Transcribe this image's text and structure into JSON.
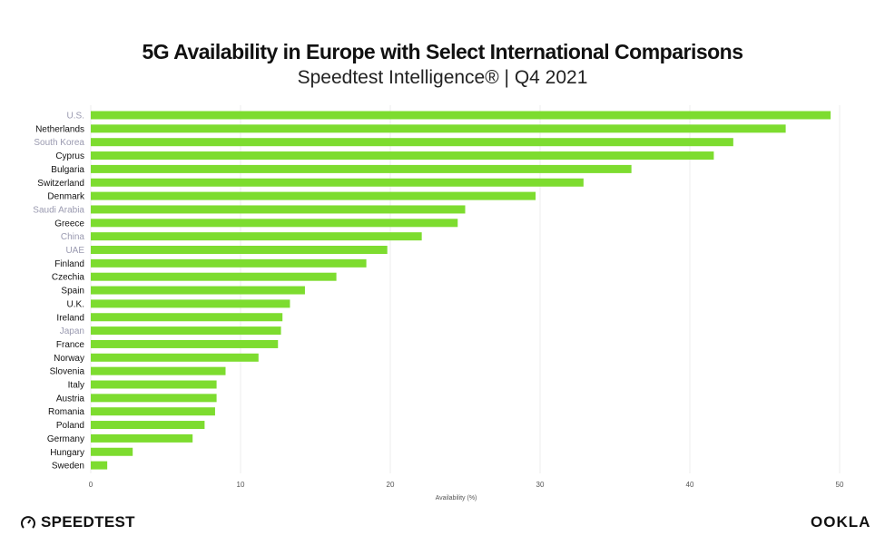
{
  "chart_data": {
    "type": "bar",
    "orientation": "horizontal",
    "title": "5G Availability in Europe with Select International Comparisons",
    "subtitle": "Speedtest Intelligence® | Q4 2021",
    "xlabel": "Availability (%)",
    "ylabel": "",
    "xlim": [
      0,
      50
    ],
    "xticks": [
      0,
      10,
      20,
      30,
      40,
      50
    ],
    "grid": true,
    "bar_color": "#7ddc2f",
    "label_color_europe": "#111111",
    "label_color_international": "#9a9ab0",
    "categories": [
      "U.S.",
      "Netherlands",
      "South Korea",
      "Cyprus",
      "Bulgaria",
      "Switzerland",
      "Denmark",
      "Saudi Arabia",
      "Greece",
      "China",
      "UAE",
      "Finland",
      "Czechia",
      "Spain",
      "U.K.",
      "Ireland",
      "Japan",
      "France",
      "Norway",
      "Slovenia",
      "Italy",
      "Austria",
      "Romania",
      "Poland",
      "Germany",
      "Hungary",
      "Sweden"
    ],
    "international": [
      true,
      false,
      true,
      false,
      false,
      false,
      false,
      true,
      false,
      true,
      true,
      false,
      false,
      false,
      false,
      false,
      true,
      false,
      false,
      false,
      false,
      false,
      false,
      false,
      false,
      false,
      false
    ],
    "values": [
      49.4,
      46.4,
      42.9,
      41.6,
      36.1,
      32.9,
      29.7,
      25.0,
      24.5,
      22.1,
      19.8,
      18.4,
      16.4,
      14.3,
      13.3,
      12.8,
      12.7,
      12.5,
      11.2,
      9.0,
      8.4,
      8.4,
      8.3,
      7.6,
      6.8,
      2.8,
      1.1
    ]
  },
  "branding": {
    "left": "SPEEDTEST",
    "right": "OOKLA"
  }
}
